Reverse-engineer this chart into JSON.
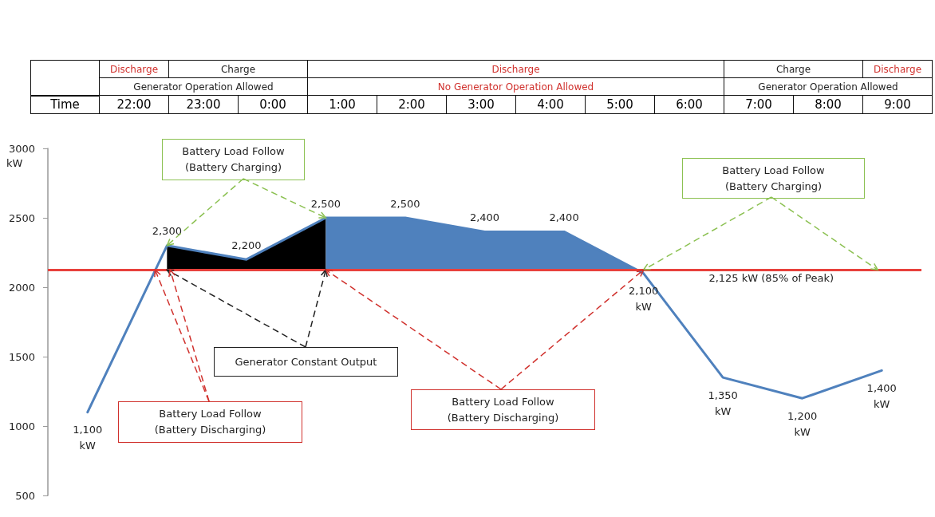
{
  "chart_data": {
    "type": "line",
    "categories": [
      null,
      null,
      null,
      null,
      null,
      null,
      null,
      null,
      null,
      null,
      null
    ],
    "series": [
      {
        "type": "area",
        "color": "#000000",
        "values": [
          null,
          2300,
          2200,
          2500,
          null,
          null,
          null,
          null,
          null,
          null,
          null
        ]
      },
      {
        "type": "area",
        "color": "#4f81bd",
        "values": [
          null,
          null,
          null,
          2500,
          2500,
          2400,
          2400,
          2100,
          null,
          null,
          null
        ]
      },
      {
        "color": "#4f81bd",
        "values": [
          1100,
          2300,
          2200,
          2500,
          2500,
          2400,
          2400,
          2100,
          1350,
          1200,
          1400
        ],
        "value_labels": [
          "1,100 kW",
          "2,300",
          "2,200",
          "2,500",
          "2,500",
          "2,400",
          "2,400",
          "2,100 kW",
          "1,350 kW",
          "1,200 kW",
          "1,400 kW"
        ]
      }
    ],
    "ylabel": "kW",
    "ylim": [
      500,
      3000
    ],
    "yticks": [
      500,
      1000,
      1500,
      2000,
      2500,
      3000
    ],
    "ref_lines": [
      {
        "axis": "y",
        "value": 2125,
        "label": "2,125 kW (85% of Peak)",
        "color": "#e8413c"
      }
    ],
    "annotations": [
      "Time",
      "22:00",
      "23:00",
      "0:00",
      "1:00",
      "2:00",
      "3:00",
      "4:00",
      "5:00",
      "6:00",
      "7:00",
      "8:00",
      "9:00",
      "Discharge",
      "Charge",
      "Discharge",
      "Charge",
      "Discharge",
      "Generator Operation Allowed",
      "No Generator Operation Allowed",
      "Generator Operation Allowed",
      "Battery Load Follow (Battery Charging)",
      "Battery Load Follow (Battery Charging)",
      "Generator Constant Output",
      "Battery Load Follow (Battery Discharging)",
      "Battery Load Follow (Battery Discharging)"
    ],
    "grid": false,
    "marker": "none",
    "line_style": "solid"
  }
}
